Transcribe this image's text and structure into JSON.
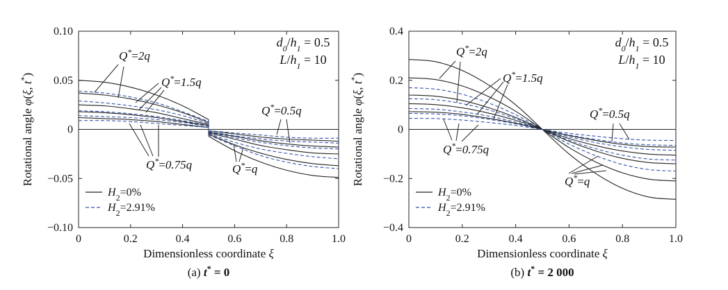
{
  "chart_data": [
    {
      "type": "line",
      "caption": "(a) t* = 0",
      "xlabel": "Dimensionless coordinate ξ",
      "ylabel": "Rotational angle φ(ξ, t*)",
      "xlim": [
        0,
        1.0
      ],
      "ylim": [
        -0.1,
        0.1
      ],
      "x_ticks": [
        "0",
        "0.2",
        "0.4",
        "0.6",
        "0.8",
        "1.0"
      ],
      "y_ticks": [
        "0.10",
        "0.05",
        "0",
        "−0.05",
        "−0.10"
      ],
      "y_tick_values": [
        0.1,
        0.05,
        0,
        -0.05,
        -0.1
      ],
      "params": [
        "d0/h1 = 0.5",
        "L/h1 = 10"
      ],
      "legend": [
        {
          "label": "H2=0%",
          "style": "solid",
          "color": "#222222"
        },
        {
          "label": "H2=2.91%",
          "style": "dashed",
          "color": "#3355aa"
        }
      ],
      "annotations": [
        "Q*=2q",
        "Q*=1.5q",
        "Q*=0.75q",
        "Q*=0.5q",
        "Q*=q"
      ],
      "x": [
        0,
        0.1,
        0.2,
        0.3,
        0.4,
        0.5
      ],
      "series": [
        {
          "label": "Q*=2q, H2=0%",
          "style": "solid",
          "left": [
            0.05,
            0.048,
            0.043,
            0.035,
            0.024,
            0.01
          ],
          "right_end": -0.049
        },
        {
          "label": "Q*=2q, H2=2.91%",
          "style": "dashed",
          "left": [
            0.039,
            0.037,
            0.033,
            0.027,
            0.018,
            0.008
          ],
          "right_end": -0.04
        },
        {
          "label": "Q*=1.5q, H2=0%",
          "style": "solid",
          "left": [
            0.037,
            0.035,
            0.031,
            0.025,
            0.017,
            0.007
          ],
          "right_end": -0.037
        },
        {
          "label": "Q*=1.5q, H2=2.91%",
          "style": "dashed",
          "left": [
            0.029,
            0.027,
            0.024,
            0.02,
            0.014,
            0.006
          ],
          "right_end": -0.03
        },
        {
          "label": "Q*=q, H2=0%",
          "style": "solid",
          "left": [
            0.025,
            0.024,
            0.021,
            0.017,
            0.011,
            0.005
          ],
          "right_end": -0.025
        },
        {
          "label": "Q*=q, H2=2.91%",
          "style": "dashed",
          "left": [
            0.019,
            0.018,
            0.016,
            0.013,
            0.009,
            0.004
          ],
          "right_end": -0.02
        },
        {
          "label": "Q*=0.75q, H2=0%",
          "style": "solid",
          "left": [
            0.018,
            0.017,
            0.015,
            0.012,
            0.008,
            0.004
          ],
          "right_end": -0.018
        },
        {
          "label": "Q*=0.75q, H2=2.91%",
          "style": "dashed",
          "left": [
            0.014,
            0.013,
            0.012,
            0.01,
            0.007,
            0.003
          ],
          "right_end": -0.014
        },
        {
          "label": "Q*=0.5q, H2=0%",
          "style": "solid",
          "left": [
            0.012,
            0.011,
            0.01,
            0.008,
            0.005,
            0.002
          ],
          "right_end": -0.012
        },
        {
          "label": "Q*=0.5q, H2=2.91%",
          "style": "dashed",
          "left": [
            0.009,
            0.009,
            0.008,
            0.006,
            0.004,
            0.002
          ],
          "right_end": -0.009
        }
      ]
    },
    {
      "type": "line",
      "caption": "(b) t* = 2 000",
      "xlabel": "Dimensionless coordinate ξ",
      "ylabel": "Rotational angle φ(ξ, t*)",
      "xlim": [
        0,
        1.0
      ],
      "ylim": [
        -0.4,
        0.4
      ],
      "x_ticks": [
        "0",
        "0.2",
        "0.4",
        "0.6",
        "0.8",
        "1.0"
      ],
      "y_ticks": [
        "0.4",
        "0.2",
        "0",
        "−0.2",
        "−0.4"
      ],
      "y_tick_values": [
        0.4,
        0.2,
        0,
        -0.2,
        -0.4
      ],
      "params": [
        "d0/h1 = 0.5",
        "L/h1 = 10"
      ],
      "legend": [
        {
          "label": "H2=0%",
          "style": "solid",
          "color": "#222222"
        },
        {
          "label": "H2=2.91%",
          "style": "dashed",
          "color": "#3355aa"
        }
      ],
      "annotations": [
        "Q*=2q",
        "Q*=1.5q",
        "Q*=0.75q",
        "Q*=0.5q",
        "Q*=q"
      ],
      "x": [
        0,
        0.1,
        0.2,
        0.3,
        0.4,
        0.5
      ],
      "series": [
        {
          "label": "Q*=2q, H2=0%",
          "style": "solid",
          "left": [
            0.285,
            0.276,
            0.24,
            0.18,
            0.1,
            0.0
          ],
          "right_end": -0.285
        },
        {
          "label": "Q*=2q, H2=2.91%",
          "style": "dashed",
          "left": [
            0.17,
            0.164,
            0.143,
            0.107,
            0.06,
            0.0
          ],
          "right_end": -0.17
        },
        {
          "label": "Q*=1.5q, H2=0%",
          "style": "solid",
          "left": [
            0.21,
            0.203,
            0.177,
            0.133,
            0.074,
            0.0
          ],
          "right_end": -0.21
        },
        {
          "label": "Q*=1.5q, H2=2.91%",
          "style": "dashed",
          "left": [
            0.125,
            0.121,
            0.105,
            0.079,
            0.044,
            0.0
          ],
          "right_end": -0.125
        },
        {
          "label": "Q*=q, H2=0%",
          "style": "solid",
          "left": [
            0.14,
            0.135,
            0.118,
            0.088,
            0.049,
            0.0
          ],
          "right_end": -0.14
        },
        {
          "label": "Q*=q, H2=2.91%",
          "style": "dashed",
          "left": [
            0.085,
            0.082,
            0.071,
            0.054,
            0.03,
            0.0
          ],
          "right_end": -0.085
        },
        {
          "label": "Q*=0.75q, H2=0%",
          "style": "solid",
          "left": [
            0.105,
            0.101,
            0.088,
            0.066,
            0.037,
            0.0
          ],
          "right_end": -0.105
        },
        {
          "label": "Q*=0.75q, H2=2.91%",
          "style": "dashed",
          "left": [
            0.065,
            0.063,
            0.055,
            0.041,
            0.023,
            0.0
          ],
          "right_end": -0.065
        },
        {
          "label": "Q*=0.5q, H2=0%",
          "style": "solid",
          "left": [
            0.072,
            0.07,
            0.061,
            0.045,
            0.025,
            0.0
          ],
          "right_end": -0.072
        },
        {
          "label": "Q*=0.5q, H2=2.91%",
          "style": "dashed",
          "left": [
            0.045,
            0.044,
            0.038,
            0.028,
            0.016,
            0.0
          ],
          "right_end": -0.045
        }
      ]
    }
  ]
}
